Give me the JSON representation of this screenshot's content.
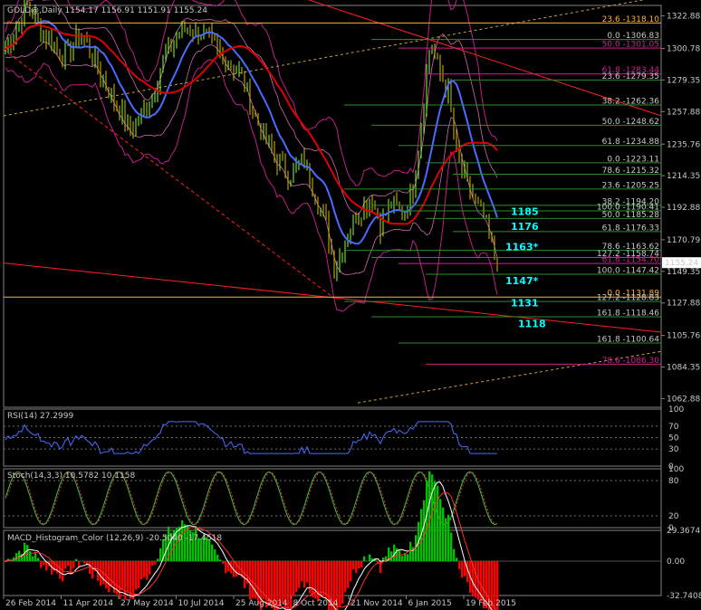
{
  "header": {
    "symbol": "GOLD@,Daily",
    "ohlc": "1154.17 1156.91 1151.91 1155.24"
  },
  "colors": {
    "background": "#000000",
    "frame": "#808080",
    "ma_fast": "#4a6cff",
    "ma_slow": "#e00000",
    "bands": "#c0208a",
    "fib": "#2e8b2e",
    "accent_label": "#00ffff"
  },
  "chart_data": {
    "type": "line",
    "main": {
      "price_axis": [
        "1322.88",
        "1300.78",
        "1279.35",
        "1257.88",
        "1235.76",
        "1214.35",
        "1192.88",
        "1170.79",
        "1149.35",
        "1127.88",
        "1105.76",
        "1084.35",
        "1062.88"
      ],
      "last_price": "1155.24",
      "date_axis": [
        "26 Feb 2014",
        "11 Apr 2014",
        "27 May 2014",
        "10 Jul 2014",
        "25 Aug 2014",
        "8 Oct 2014",
        "21 Nov 2014",
        "6 Jan 2015",
        "19 Feb 2015"
      ],
      "fib_labels": [
        {
          "text": "23.6 -1318.10",
          "price": 1318.1,
          "color": "#ffb040"
        },
        {
          "text": "0.0 -1306.83",
          "price": 1306.83,
          "color": "#c8c8c8"
        },
        {
          "text": "50.0 -1301.05",
          "price": 1301.05,
          "color": "#d02090"
        },
        {
          "text": "61.8 -1283.44",
          "price": 1283.44,
          "color": "#d02090"
        },
        {
          "text": "23.6 -1279.35",
          "price": 1279.35,
          "color": "#c8c8c8"
        },
        {
          "text": "38.2 -1262.36",
          "price": 1262.36,
          "color": "#c8c8c8"
        },
        {
          "text": "50.0 -1248.62",
          "price": 1248.62,
          "color": "#c8c8c8"
        },
        {
          "text": "61.8 -1234.88",
          "price": 1234.88,
          "color": "#c8c8c8"
        },
        {
          "text": "0.0 -1223.11",
          "price": 1223.11,
          "color": "#c8c8c8"
        },
        {
          "text": "78.6 -1215.32",
          "price": 1215.32,
          "color": "#c8c8c8"
        },
        {
          "text": "23.6 -1205.25",
          "price": 1205.25,
          "color": "#c8c8c8"
        },
        {
          "text": "38.2 -1194.20",
          "price": 1194.2,
          "color": "#c8c8c8"
        },
        {
          "text": "100.0 -1190.41",
          "price": 1190.41,
          "color": "#c8c8c8"
        },
        {
          "text": "50.0 -1185.28",
          "price": 1185.28,
          "color": "#c8c8c8"
        },
        {
          "text": "61.8 -1176.33",
          "price": 1176.33,
          "color": "#c8c8c8"
        },
        {
          "text": "78.6 -1163.62",
          "price": 1163.62,
          "color": "#c8c8c8"
        },
        {
          "text": "127.2 -1158.74",
          "price": 1158.74,
          "color": "#c8c8c8"
        },
        {
          "text": "61.8 -1154.70",
          "price": 1154.7,
          "color": "#d02090"
        },
        {
          "text": "100.0 -1147.42",
          "price": 1147.42,
          "color": "#c8c8c8"
        },
        {
          "text": "0.0 -1131.89",
          "price": 1131.89,
          "color": "#ffb040"
        },
        {
          "text": "127.2 -1128.83",
          "price": 1128.83,
          "color": "#c8c8c8"
        },
        {
          "text": "161.8 -1118.46",
          "price": 1118.46,
          "color": "#c8c8c8"
        },
        {
          "text": "161.8 -1100.64",
          "price": 1100.64,
          "color": "#c8c8c8"
        },
        {
          "text": "78.6 -1086.30",
          "price": 1086.3,
          "color": "#d02090"
        }
      ],
      "level_labels": [
        {
          "text": "1185",
          "price": 1190
        },
        {
          "text": "1176",
          "price": 1180
        },
        {
          "text": "1163*",
          "price": 1166
        },
        {
          "text": "1147*",
          "price": 1143
        },
        {
          "text": "1131",
          "price": 1128
        },
        {
          "text": "1118",
          "price": 1114
        }
      ]
    },
    "rsi": {
      "title": "RSI(14) 27.2999",
      "axis": [
        "100",
        "70",
        "50",
        "30",
        "0"
      ],
      "levels": [
        70,
        50,
        30
      ]
    },
    "stoch": {
      "title": "Stoch(14,3,3) 10.5782 10.1158",
      "axis": [
        "100",
        "80",
        "20",
        "0"
      ],
      "levels": [
        80,
        20
      ]
    },
    "macd": {
      "title": "MACD_Histogram_Color (12,26,9) -20.5040 -17.4518",
      "axis": [
        "29.3674",
        "0.00",
        "-32.7408"
      ]
    }
  }
}
